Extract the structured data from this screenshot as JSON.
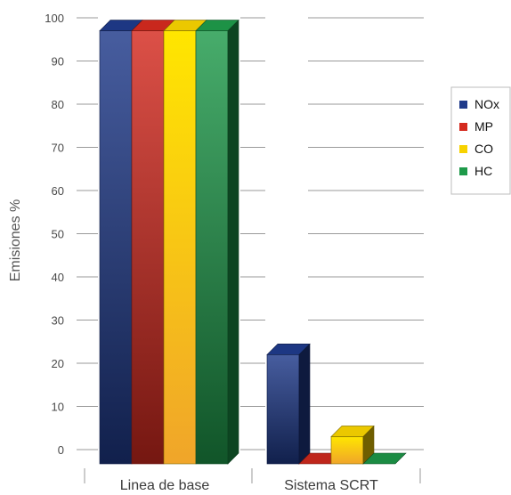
{
  "chart_data": {
    "type": "bar",
    "style": "3d-grouped",
    "title": "",
    "xlabel": "",
    "ylabel": "Emisiones %",
    "ylim": [
      0,
      100
    ],
    "yticks": [
      0,
      10,
      20,
      30,
      40,
      50,
      60,
      70,
      80,
      90,
      100
    ],
    "grid": true,
    "legend_position": "right",
    "categories": [
      "Linea de base",
      "Sistema SCRT"
    ],
    "series": [
      {
        "name": "NOx",
        "color": "#1f3a8a",
        "values": [
          97,
          22
        ]
      },
      {
        "name": "MP",
        "color": "#d42a1e",
        "values": [
          97,
          0
        ]
      },
      {
        "name": "CO",
        "color": "#f7d200",
        "values": [
          97,
          3
        ]
      },
      {
        "name": "HC",
        "color": "#1e9a4a",
        "values": [
          97,
          0
        ]
      }
    ]
  }
}
